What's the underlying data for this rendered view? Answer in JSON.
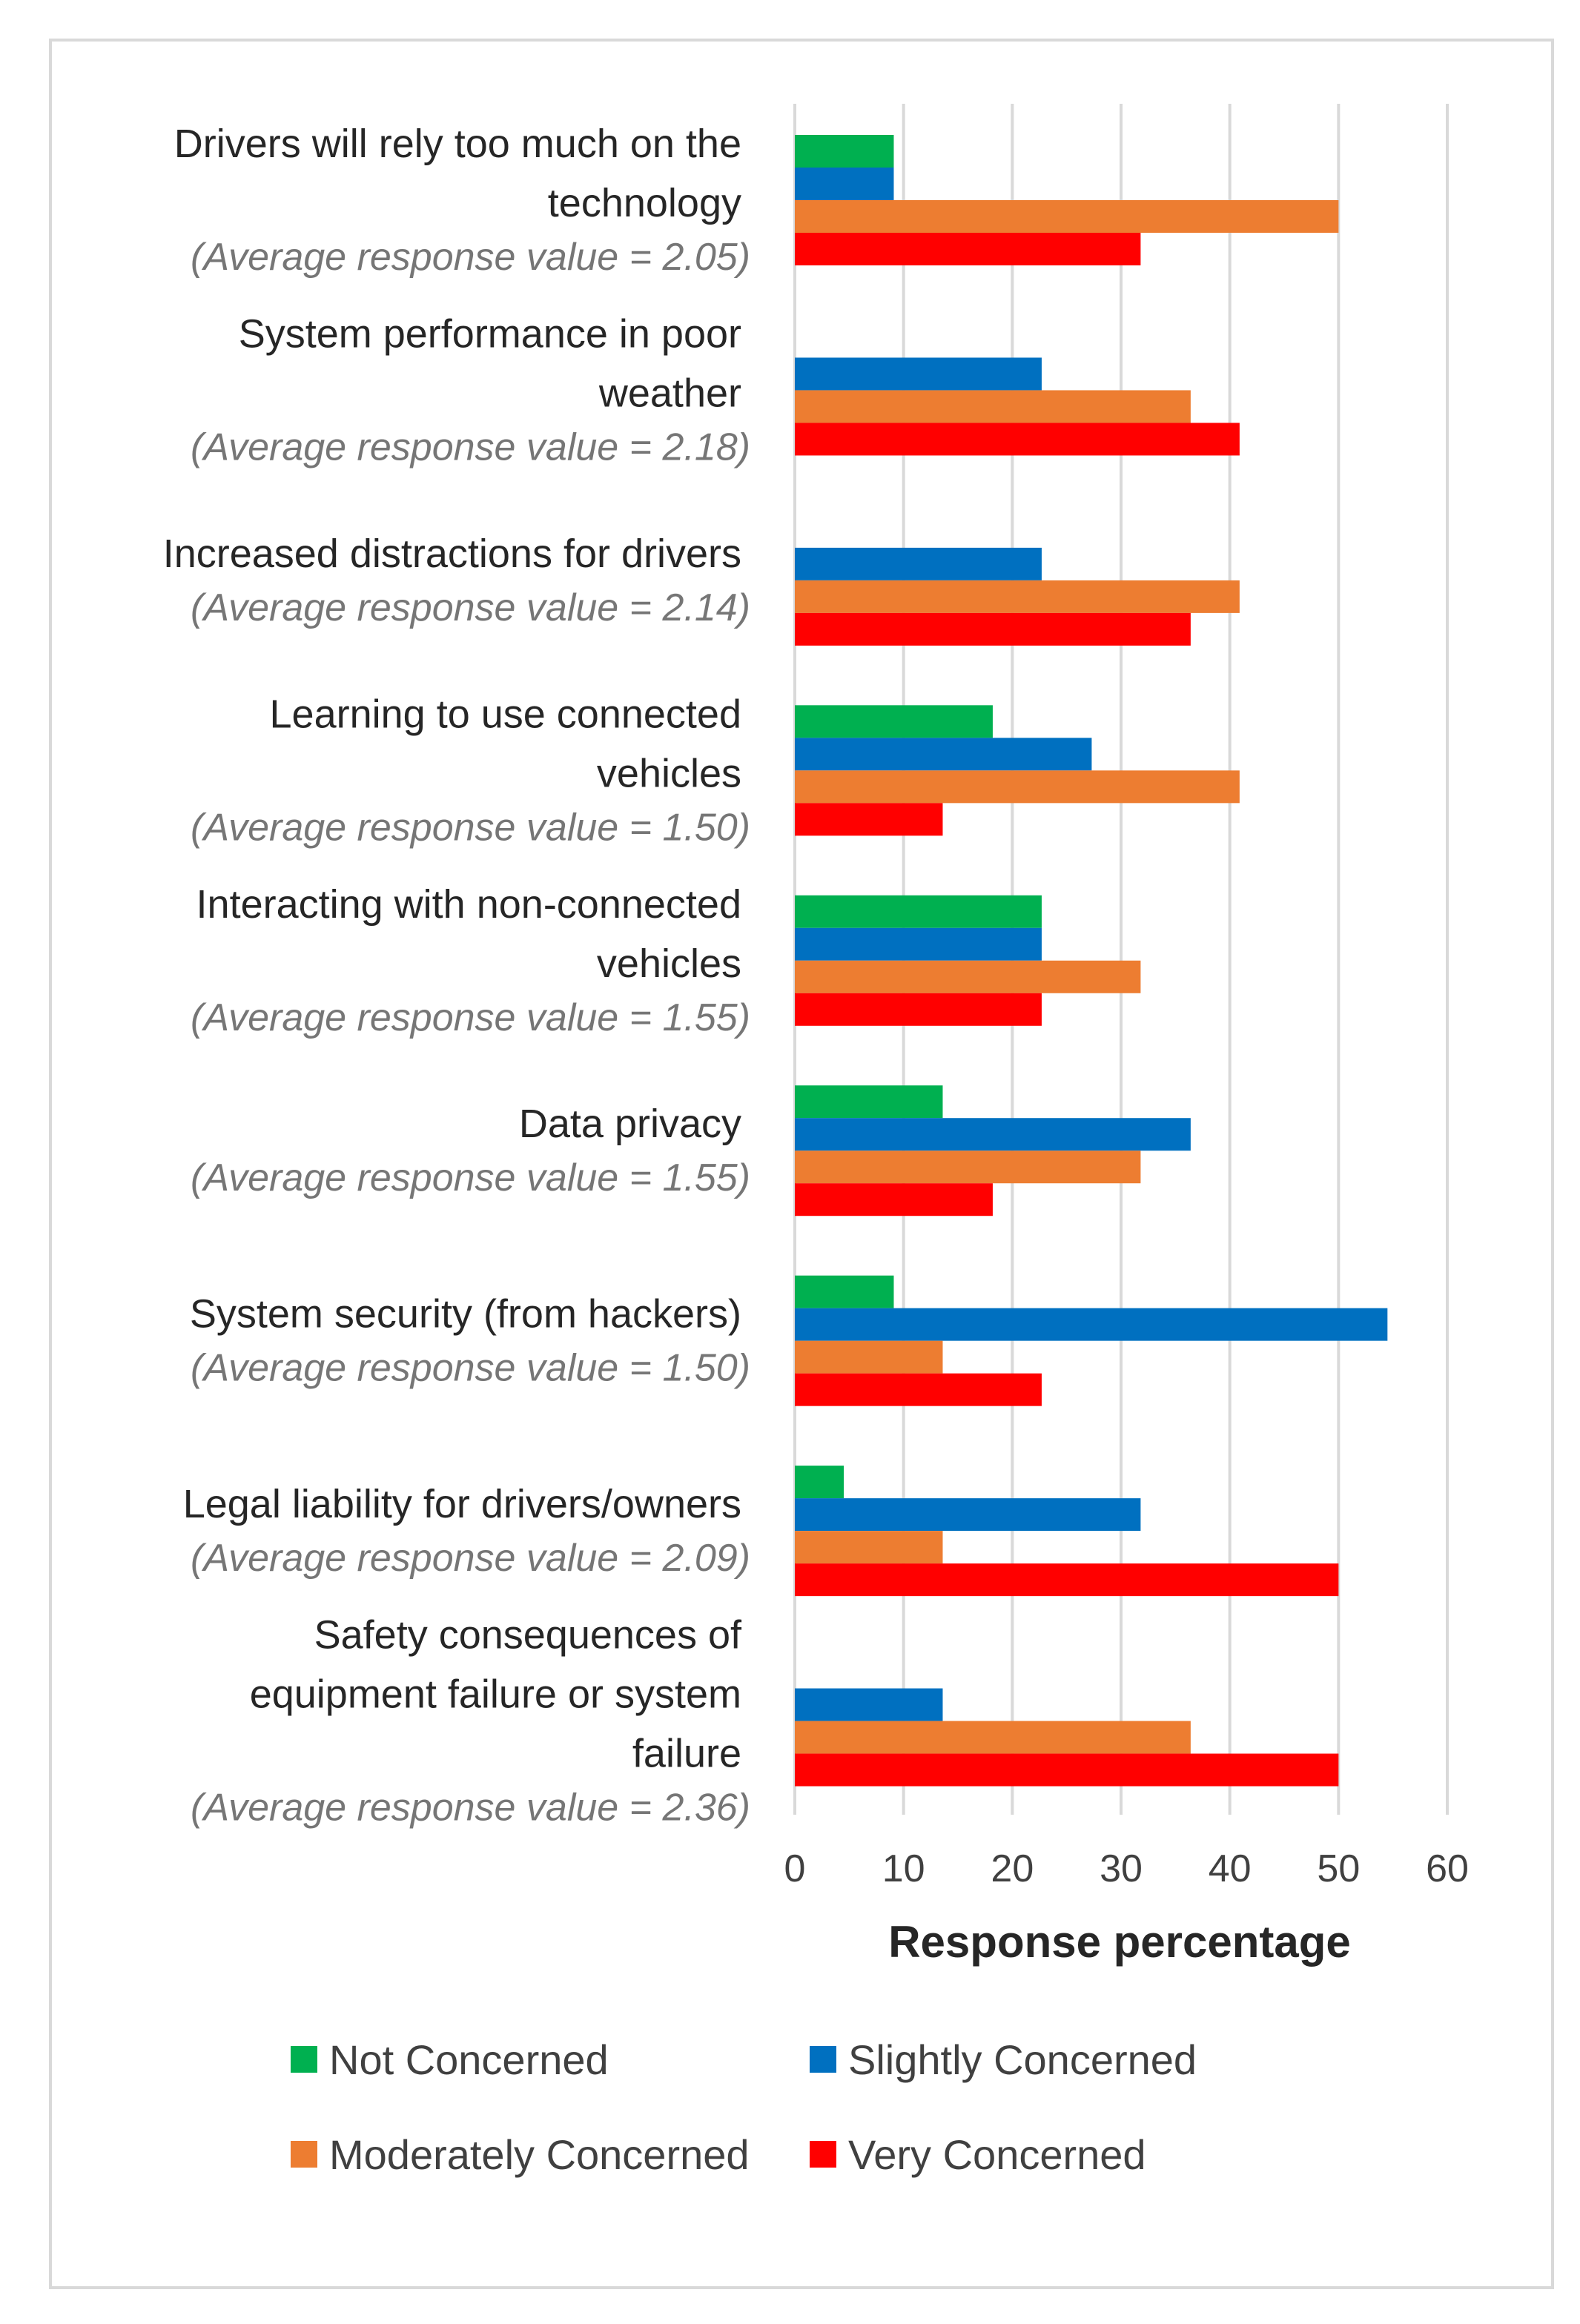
{
  "chart_data": {
    "type": "bar",
    "orientation": "horizontal",
    "xlabel": "Response percentage",
    "xlim": [
      0,
      60
    ],
    "x_ticks": [
      0,
      10,
      20,
      30,
      40,
      50,
      60
    ],
    "grid": true,
    "legend_position": "bottom",
    "categories": [
      {
        "label": [
          "Drivers will rely too much on the",
          "technology"
        ],
        "avg": "(Average response value = 2.05)"
      },
      {
        "label": [
          "System performance in poor",
          "weather"
        ],
        "avg": "(Average response value = 2.18)"
      },
      {
        "label": [
          "Increased distractions for drivers"
        ],
        "avg": "(Average response value = 2.14)"
      },
      {
        "label": [
          "Learning to use connected",
          "vehicles"
        ],
        "avg": "(Average response value = 1.50)"
      },
      {
        "label": [
          "Interacting with non-connected",
          "vehicles"
        ],
        "avg": "(Average response value = 1.55)"
      },
      {
        "label": [
          "Data privacy"
        ],
        "avg": "(Average response value = 1.55)"
      },
      {
        "label": [
          "System security (from hackers)"
        ],
        "avg": "(Average response value = 1.50)"
      },
      {
        "label": [
          "Legal liability for drivers/owners"
        ],
        "avg": "(Average response value = 2.09)"
      },
      {
        "label": [
          "Safety consequences of",
          "equipment failure or system",
          "failure"
        ],
        "avg": "(Average response value = 2.36)"
      }
    ],
    "series": [
      {
        "name": "Not Concerned",
        "color": "#00b050",
        "values": [
          9.1,
          0,
          0,
          18.2,
          22.7,
          13.6,
          9.1,
          4.5,
          0
        ]
      },
      {
        "name": "Slightly Concerned",
        "color": "#0070c0",
        "values": [
          9.1,
          22.7,
          22.7,
          27.3,
          22.7,
          36.4,
          54.5,
          31.8,
          13.6
        ]
      },
      {
        "name": "Moderately Concerned",
        "color": "#ed7d31",
        "values": [
          50.0,
          36.4,
          40.9,
          40.9,
          31.8,
          31.8,
          13.6,
          13.6,
          36.4
        ]
      },
      {
        "name": "Very Concerned",
        "color": "#ff0000",
        "values": [
          31.8,
          40.9,
          36.4,
          13.6,
          22.7,
          18.2,
          22.7,
          50.0,
          50.0
        ]
      }
    ]
  }
}
